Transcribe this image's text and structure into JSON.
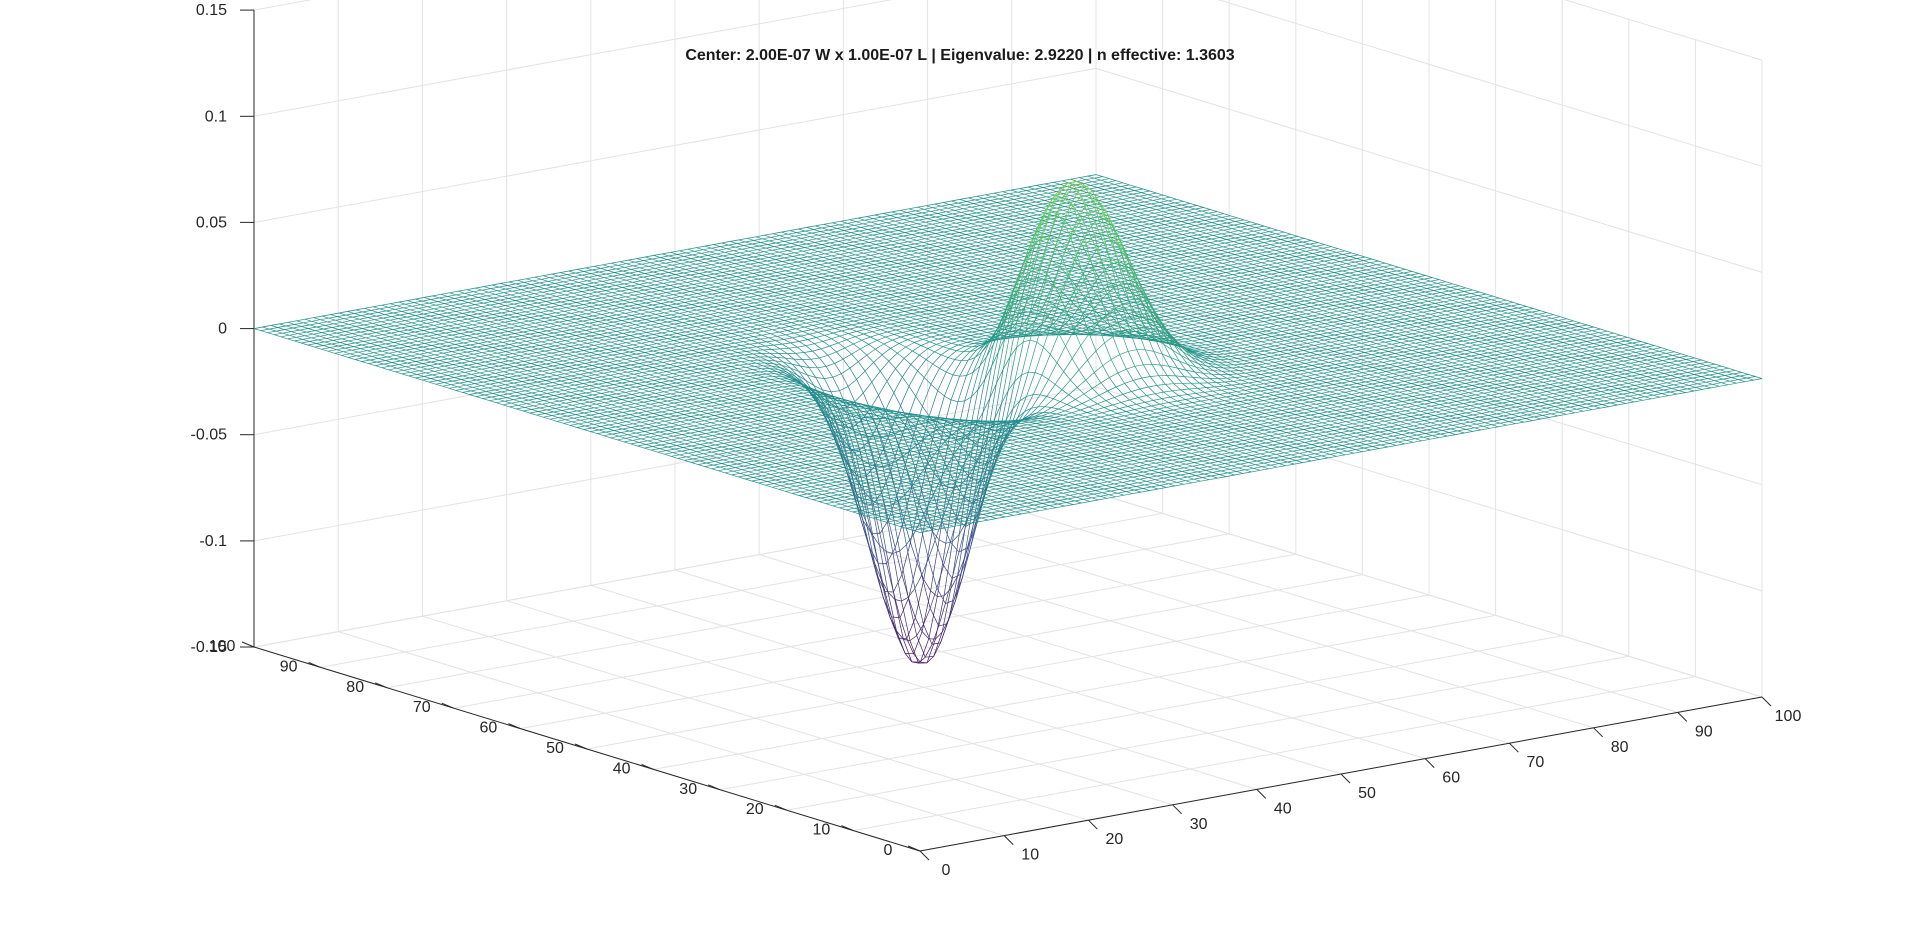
{
  "chart_data": {
    "type": "surface",
    "title": "Center: 2.00E-07 W x 1.00E-07 L | Eigenvalue: 2.9220 | n effective: 1.3603",
    "xlabel": "",
    "ylabel": "",
    "zlabel": "",
    "xlim": [
      0,
      100
    ],
    "ylim": [
      0,
      100
    ],
    "zlim": [
      -0.15,
      0.15
    ],
    "x_ticks": [
      "0",
      "10",
      "20",
      "30",
      "40",
      "50",
      "60",
      "70",
      "80",
      "90",
      "100"
    ],
    "y_ticks": [
      "0",
      "10",
      "20",
      "30",
      "40",
      "50",
      "60",
      "70",
      "80",
      "90",
      "100"
    ],
    "z_ticks": [
      "-0.15",
      "-0.1",
      "-0.05",
      "0",
      "0.05",
      "0.1",
      "0.15"
    ],
    "grid": true,
    "style": "mesh",
    "colormap": [
      "#440154",
      "#3b528b",
      "#21918c",
      "#5ec962",
      "#fde725"
    ],
    "surface": {
      "grid_size": 100,
      "baseline": 0,
      "description_peak_positive": {
        "x": 50,
        "y": 40,
        "z": 0.091
      },
      "description_peak_negative": {
        "x": 38,
        "y": 48,
        "z": -0.138
      }
    }
  }
}
